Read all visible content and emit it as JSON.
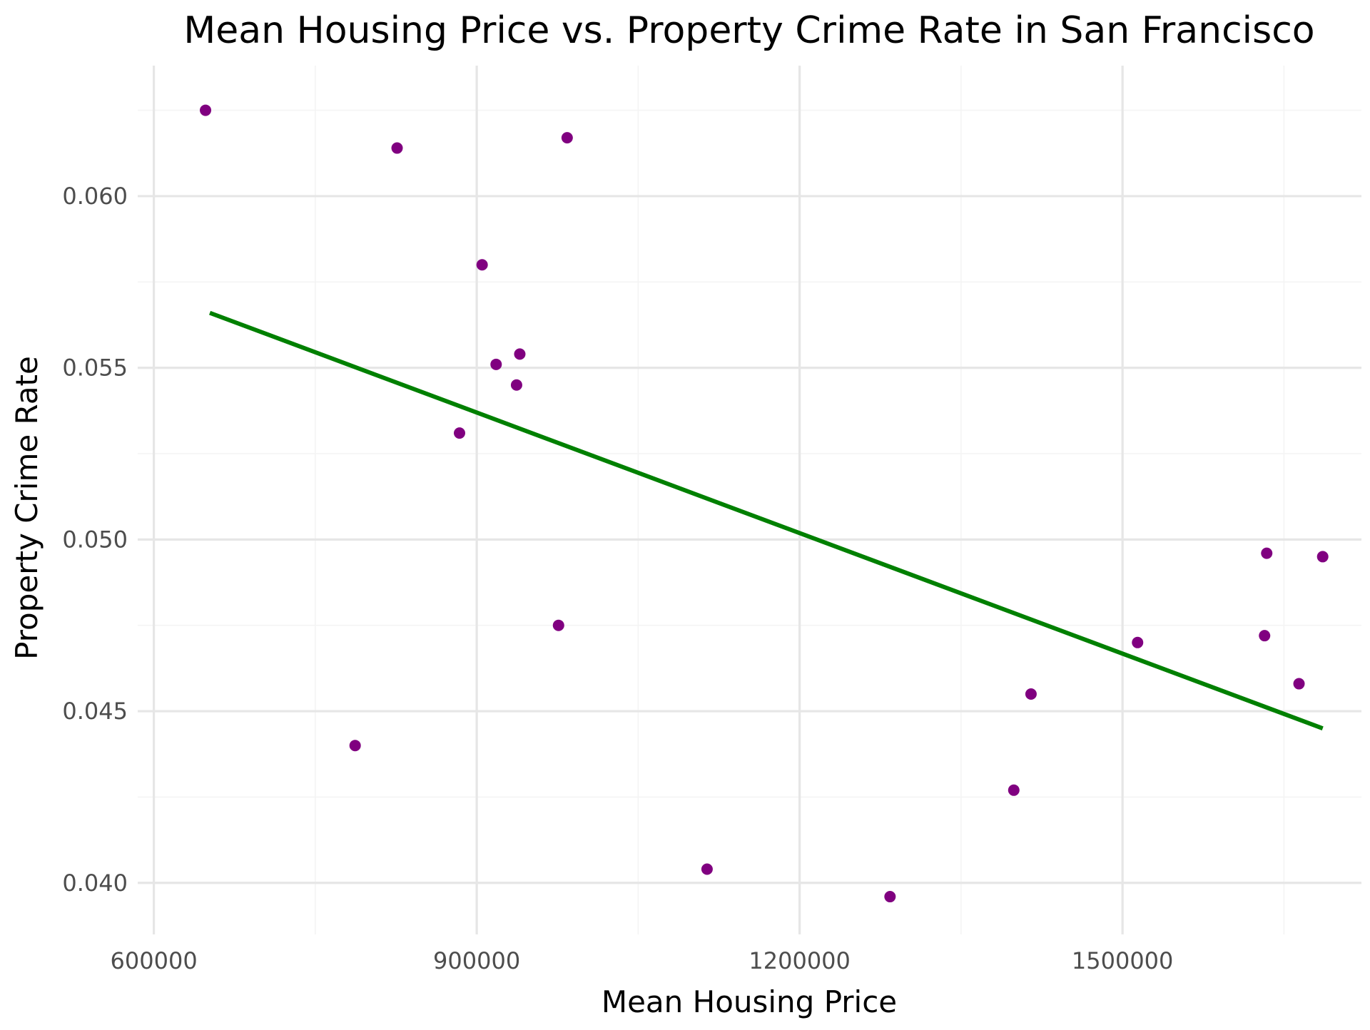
{
  "chart_data": {
    "type": "scatter",
    "title": "Mean Housing Price vs. Property Crime Rate in San Francisco",
    "xlabel": "Mean Housing Price",
    "ylabel": "Property Crime Rate",
    "xlim": [
      585000,
      1722000
    ],
    "ylim": [
      0.0385,
      0.0638
    ],
    "x_ticks": [
      600000,
      900000,
      1200000,
      1500000
    ],
    "x_tick_labels": [
      "600000",
      "900000",
      "1200000",
      "1500000"
    ],
    "x_minor_ticks": [
      750000,
      1050000,
      1350000,
      1650000
    ],
    "y_ticks": [
      0.04,
      0.045,
      0.05,
      0.055,
      0.06
    ],
    "y_tick_labels": [
      "0.040",
      "0.045",
      "0.050",
      "0.055",
      "0.060"
    ],
    "y_minor_ticks": [
      0.0425,
      0.0475,
      0.0525,
      0.0575,
      0.0625
    ],
    "grid": true,
    "point_color": "#800080",
    "line_color": "#008000",
    "series": [
      {
        "points": [
          {
            "x": 648000,
            "y": 0.0625
          },
          {
            "x": 826000,
            "y": 0.0614
          },
          {
            "x": 984000,
            "y": 0.0617
          },
          {
            "x": 905000,
            "y": 0.058
          },
          {
            "x": 918000,
            "y": 0.0551
          },
          {
            "x": 940000,
            "y": 0.0554
          },
          {
            "x": 937000,
            "y": 0.0545
          },
          {
            "x": 884000,
            "y": 0.0531
          },
          {
            "x": 976000,
            "y": 0.0475
          },
          {
            "x": 787000,
            "y": 0.044
          },
          {
            "x": 1114000,
            "y": 0.0404
          },
          {
            "x": 1284000,
            "y": 0.0396
          },
          {
            "x": 1399000,
            "y": 0.0427
          },
          {
            "x": 1415000,
            "y": 0.0455
          },
          {
            "x": 1514000,
            "y": 0.047
          },
          {
            "x": 1634000,
            "y": 0.0496
          },
          {
            "x": 1632000,
            "y": 0.0472
          },
          {
            "x": 1664000,
            "y": 0.0458
          },
          {
            "x": 1686000,
            "y": 0.0495
          }
        ]
      }
    ],
    "trend_line": {
      "x": [
        652000,
        1686000
      ],
      "y": [
        0.0566,
        0.0445
      ]
    }
  }
}
